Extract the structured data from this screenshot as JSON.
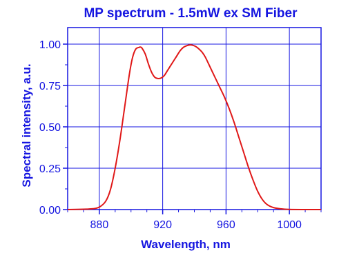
{
  "chart_data": {
    "type": "line",
    "title": "MP spectrum - 1.5mW ex SM Fiber",
    "xlabel": "Wavelength, nm",
    "ylabel": "Spectral intensity, a.u.",
    "xlim": [
      860,
      1020
    ],
    "ylim": [
      0,
      1.1
    ],
    "xticks": [
      880,
      920,
      960,
      1000
    ],
    "xtick_labels": [
      "880",
      "920",
      "960",
      "1000"
    ],
    "yticks": [
      0,
      0.25,
      0.5,
      0.75,
      1.0
    ],
    "ytick_labels": [
      "0.00",
      "0.25",
      "0.50",
      "0.75",
      "1.00"
    ],
    "grid": true,
    "colors": {
      "axis": "#1515e0",
      "grid": "#1515e0",
      "line": "#e01818",
      "text": "#1515e0"
    },
    "series": [
      {
        "x": [
          860,
          870,
          876,
          880,
          884,
          887,
          890,
          893,
          896,
          899,
          901,
          903,
          905,
          906,
          907,
          909,
          911,
          913,
          915,
          917,
          919,
          921,
          923,
          925,
          927,
          929,
          931,
          933,
          935,
          937,
          939,
          941,
          943,
          945,
          947,
          950,
          953,
          956,
          959,
          962,
          965,
          968,
          971,
          974,
          977,
          980,
          983,
          986,
          990,
          995,
          1000,
          1010,
          1020
        ],
        "y": [
          0.0,
          0.002,
          0.005,
          0.015,
          0.05,
          0.12,
          0.25,
          0.42,
          0.62,
          0.82,
          0.92,
          0.97,
          0.98,
          0.982,
          0.975,
          0.94,
          0.88,
          0.83,
          0.8,
          0.792,
          0.795,
          0.81,
          0.84,
          0.87,
          0.9,
          0.93,
          0.96,
          0.98,
          0.99,
          0.995,
          0.993,
          0.985,
          0.97,
          0.95,
          0.92,
          0.86,
          0.8,
          0.74,
          0.68,
          0.61,
          0.53,
          0.44,
          0.35,
          0.26,
          0.18,
          0.11,
          0.06,
          0.03,
          0.012,
          0.004,
          0.001,
          0.0,
          0.0
        ]
      }
    ]
  }
}
